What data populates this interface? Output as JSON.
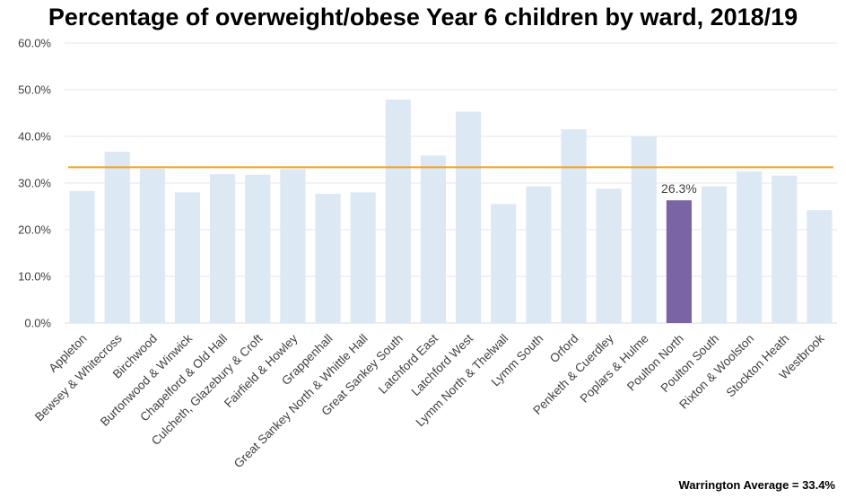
{
  "chart_data": {
    "type": "bar",
    "title": "Percentage of overweight/obese Year 6 children by ward, 2018/19",
    "xlabel": "",
    "ylabel": "",
    "ylim": [
      0,
      60
    ],
    "yticks": [
      "0.0%",
      "10.0%",
      "20.0%",
      "30.0%",
      "40.0%",
      "50.0%",
      "60.0%"
    ],
    "grid": true,
    "categories": [
      "Appleton",
      "Bewsey & Whitecross",
      "Birchwood",
      "Burtonwood & Winwick",
      "Chapelford & Old Hall",
      "Culcheth, Glazebury & Croft",
      "Fairfield & Howley",
      "Grappenhall",
      "Great Sankey North & Whittle Hall",
      "Great Sankey South",
      "Latchford East",
      "Latchford West",
      "Lymm North & Thelwall",
      "Lymm South",
      "Orford",
      "Penketh & Cuerdley",
      "Poplars & Hulme",
      "Poulton North",
      "Poulton South",
      "Rixton & Woolston",
      "Stockton Heath",
      "Westbrook"
    ],
    "values": [
      28.3,
      36.7,
      33.1,
      28.0,
      31.9,
      31.8,
      33.0,
      27.7,
      28.0,
      47.9,
      35.9,
      45.3,
      25.5,
      29.3,
      41.5,
      28.8,
      40.1,
      26.3,
      29.3,
      32.5,
      31.6,
      24.2
    ],
    "highlight_index": 17,
    "highlight_label": "26.3%",
    "average_line": 33.4,
    "footnote": "Warrington Average = 33.4%",
    "colors": {
      "bar": "#dde8f5",
      "highlight": "#7b64a5",
      "average_line": "#f0a01e",
      "grid": "#e6e6e6"
    }
  }
}
